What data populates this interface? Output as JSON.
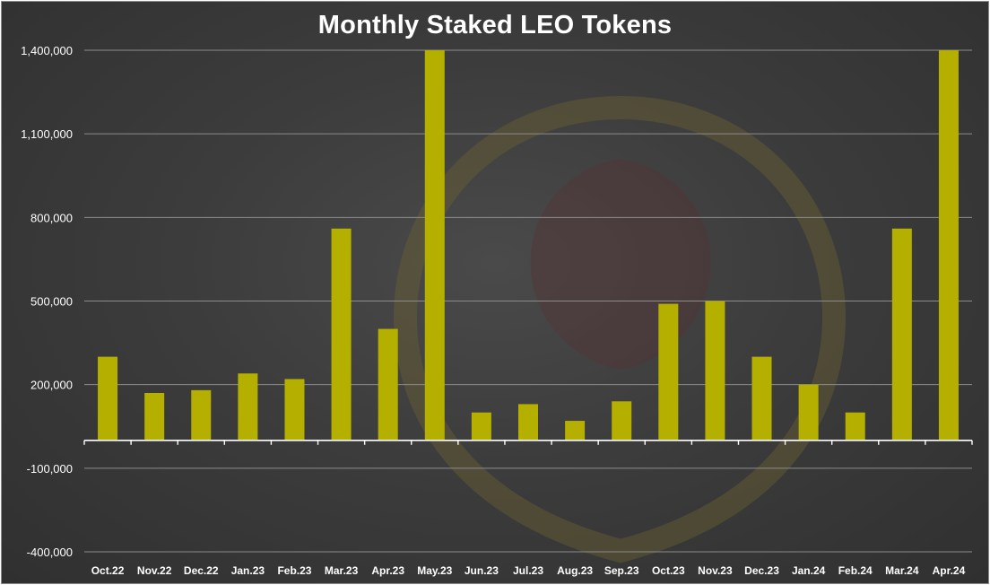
{
  "chart_data": {
    "type": "bar",
    "title": "Monthly Staked LEO Tokens",
    "xlabel": "",
    "ylabel": "",
    "categories": [
      "Oct.22",
      "Nov.22",
      "Dec.22",
      "Jan.23",
      "Feb.23",
      "Mar.23",
      "Apr.23",
      "May.23",
      "Jun.23",
      "Jul.23",
      "Aug.23",
      "Sep.23",
      "Oct.23",
      "Nov.23",
      "Dec.23",
      "Jan.24",
      "Feb.24",
      "Mar.24",
      "Apr.24"
    ],
    "values": [
      300000,
      170000,
      180000,
      240000,
      220000,
      760000,
      400000,
      1400000,
      100000,
      130000,
      70000,
      140000,
      490000,
      500000,
      300000,
      200000,
      100000,
      760000,
      1400000
    ],
    "ylim": [
      -400000,
      1400000
    ],
    "yticks": [
      -400000,
      -100000,
      200000,
      500000,
      800000,
      1100000,
      1400000
    ],
    "ytick_labels": [
      "-400,000",
      "-100,000",
      "200,000",
      "500,000",
      "800,000",
      "1,100,000",
      "1,400,000"
    ],
    "grid": true,
    "bar_color": "#b5b000",
    "background_color": "#3a3a3a",
    "watermark": "lion-shield-logo"
  }
}
